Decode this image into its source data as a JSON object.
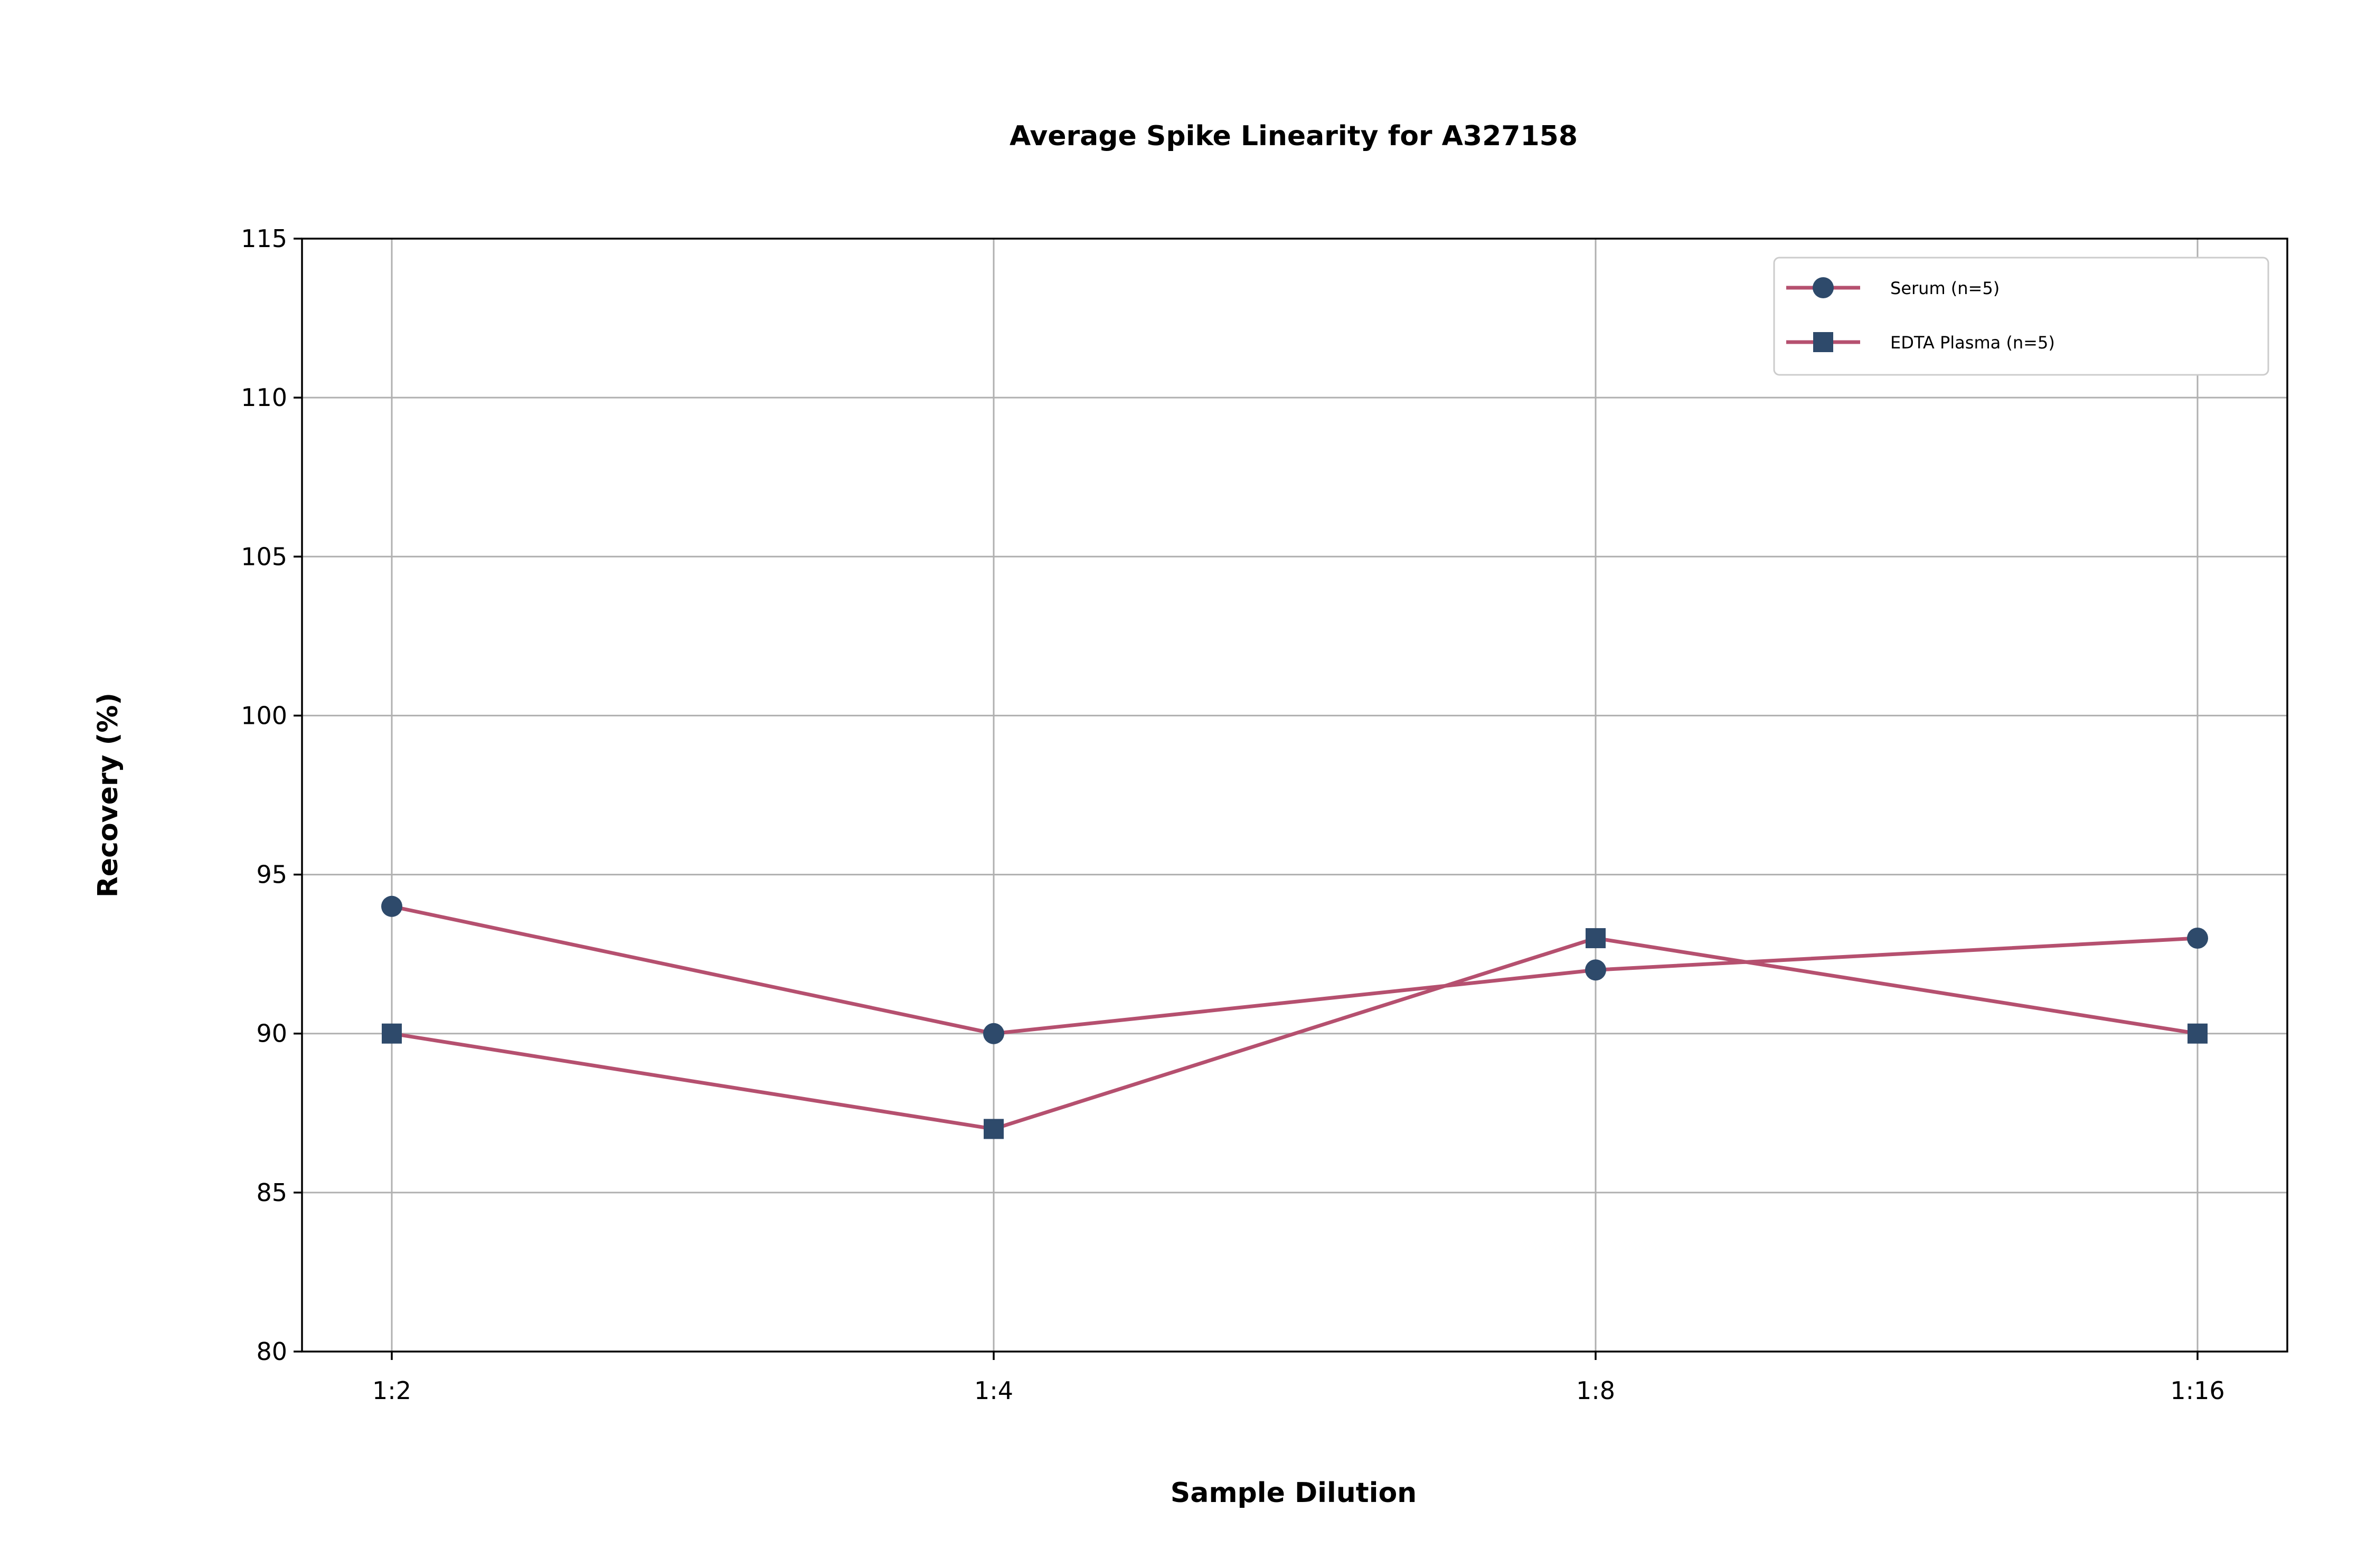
{
  "chart_data": {
    "type": "line",
    "title": "Average Spike Linearity for A327158",
    "xlabel": "Sample Dilution",
    "ylabel": "Recovery (%)",
    "categories": [
      "1:2",
      "1:4",
      "1:8",
      "1:16"
    ],
    "ylim": [
      80,
      115
    ],
    "yticks": [
      80,
      85,
      90,
      95,
      100,
      105,
      110,
      115
    ],
    "grid": true,
    "legend_position": "top-right",
    "series": [
      {
        "name": "Serum (n=5)",
        "marker": "circle",
        "values": [
          94,
          90,
          92,
          93
        ]
      },
      {
        "name": "EDTA Plasma (n=5)",
        "marker": "square",
        "values": [
          90,
          87,
          93,
          90
        ]
      }
    ],
    "colors": {
      "line": "#b5506f",
      "marker": "#2e4a6b",
      "grid": "#b0b0b0"
    }
  }
}
